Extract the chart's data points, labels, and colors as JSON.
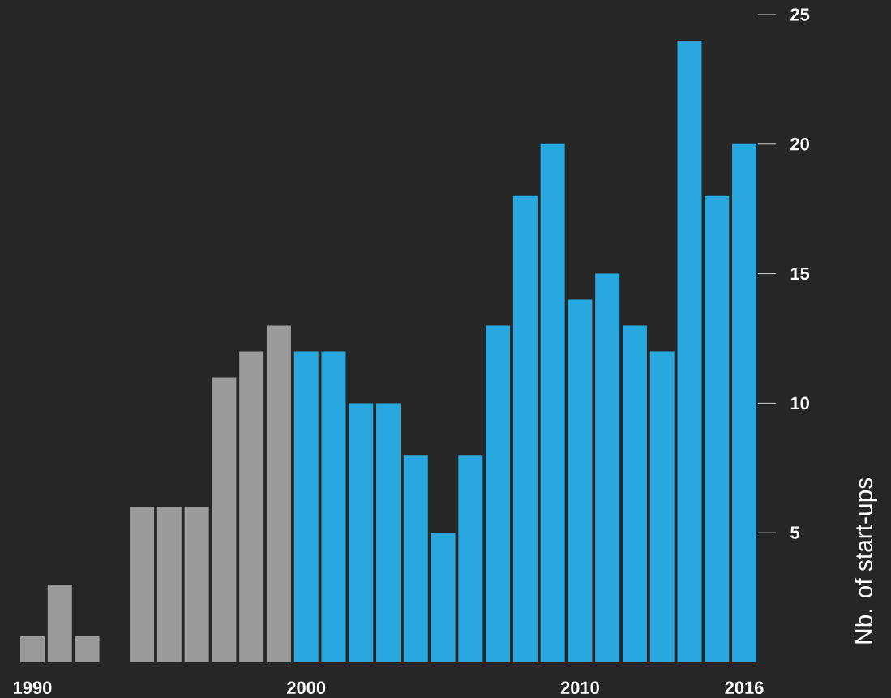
{
  "chart_data": {
    "type": "bar",
    "ylabel": "Nb. of start-ups",
    "categories": [
      "1990",
      null,
      null,
      null,
      null,
      null,
      null,
      null,
      null,
      null,
      "2000",
      null,
      null,
      null,
      null,
      null,
      null,
      null,
      null,
      null,
      "2010",
      null,
      null,
      null,
      null,
      null,
      "2016"
    ],
    "values": [
      1,
      3,
      1,
      0,
      6,
      6,
      6,
      11,
      12,
      13,
      12,
      12,
      10,
      10,
      8,
      5,
      8,
      13,
      18,
      20,
      14,
      15,
      13,
      12,
      24,
      18,
      20
    ],
    "colors": [
      "#9b9b9b",
      "#9b9b9b",
      "#9b9b9b",
      "#9b9b9b",
      "#9b9b9b",
      "#9b9b9b",
      "#9b9b9b",
      "#9b9b9b",
      "#9b9b9b",
      "#9b9b9b",
      "#29a8e0",
      "#29a8e0",
      "#29a8e0",
      "#29a8e0",
      "#29a8e0",
      "#29a8e0",
      "#29a8e0",
      "#29a8e0",
      "#29a8e0",
      "#29a8e0",
      "#29a8e0",
      "#29a8e0",
      "#29a8e0",
      "#29a8e0",
      "#29a8e0",
      "#29a8e0",
      "#29a8e0"
    ],
    "ylim": [
      0,
      25
    ],
    "yticks": [
      5,
      10,
      15,
      20,
      25
    ]
  }
}
